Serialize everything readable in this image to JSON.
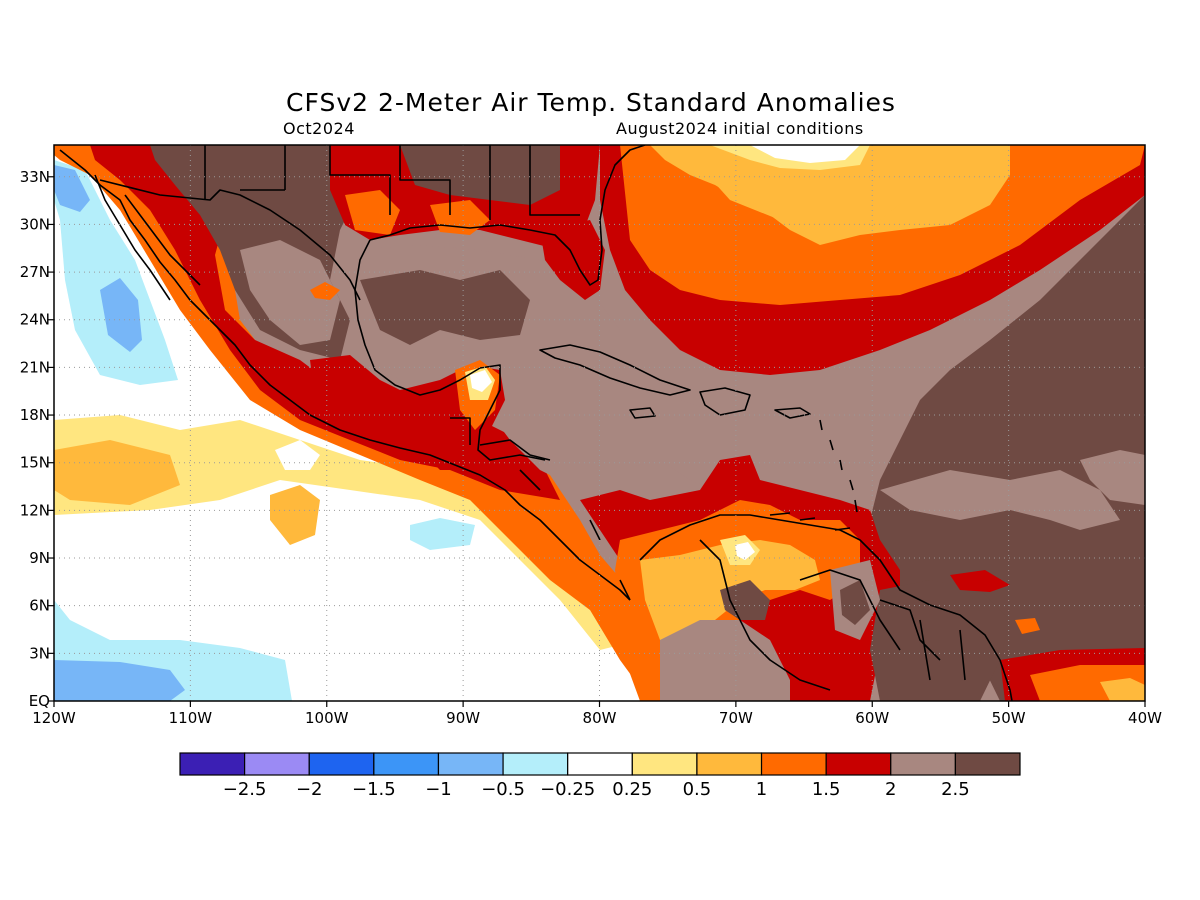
{
  "title": "CFSv2 2-Meter Air Temp. Standard Anomalies",
  "subtitle_left": "Oct2024",
  "subtitle_right": "August2024 initial conditions",
  "map_extent": {
    "lon_min": -120,
    "lon_max": -40,
    "lat_min": 0,
    "lat_max": 35
  },
  "x_ticks": [
    {
      "value": -120,
      "label": "120W"
    },
    {
      "value": -110,
      "label": "110W"
    },
    {
      "value": -100,
      "label": "100W"
    },
    {
      "value": -90,
      "label": "90W"
    },
    {
      "value": -80,
      "label": "80W"
    },
    {
      "value": -70,
      "label": "70W"
    },
    {
      "value": -60,
      "label": "60W"
    },
    {
      "value": -50,
      "label": "50W"
    },
    {
      "value": -40,
      "label": "40W"
    }
  ],
  "y_ticks": [
    {
      "value": 0,
      "label": "EQ"
    },
    {
      "value": 3,
      "label": "3N"
    },
    {
      "value": 6,
      "label": "6N"
    },
    {
      "value": 9,
      "label": "9N"
    },
    {
      "value": 12,
      "label": "12N"
    },
    {
      "value": 15,
      "label": "15N"
    },
    {
      "value": 18,
      "label": "18N"
    },
    {
      "value": 21,
      "label": "21N"
    },
    {
      "value": 24,
      "label": "24N"
    },
    {
      "value": 27,
      "label": "27N"
    },
    {
      "value": 30,
      "label": "30N"
    },
    {
      "value": 33,
      "label": "33N"
    }
  ],
  "grid": "dotted",
  "colorbar": {
    "colors": [
      "#3b1fb4",
      "#9b8af4",
      "#1e64f0",
      "#3c95f7",
      "#77b6f7",
      "#b4eefa",
      "#ffffff",
      "#ffe680",
      "#ffb93c",
      "#ff6a00",
      "#c80000",
      "#a88780",
      "#6f4a43"
    ],
    "labels": [
      "-2.5",
      "-2",
      "-1.5",
      "-1",
      "-0.5",
      "-0.25",
      "0.25",
      "0.5",
      "1",
      "1.5",
      "2",
      "2.5"
    ]
  },
  "palette": {
    "white": "#ffffff",
    "ltblue": "#b4eefa",
    "blue": "#77b6f7",
    "yellow": "#ffe680",
    "lorange": "#ffb93c",
    "orange": "#ff6a00",
    "red": "#c80000",
    "ltbrown": "#a88780",
    "dkbrown": "#6f4a43"
  }
}
